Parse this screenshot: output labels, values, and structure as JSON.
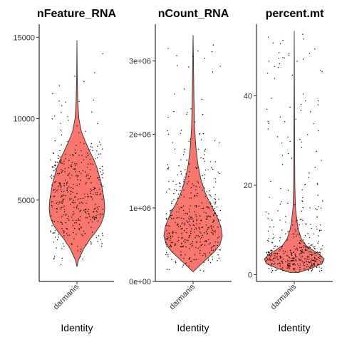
{
  "chart_data": [
    {
      "type": "violin",
      "title": "nFeature_RNA",
      "xlabel": "Identity",
      "category": "darmanis",
      "ylim": [
        0,
        15800
      ],
      "yticks": [
        5000,
        10000,
        15000
      ],
      "ytick_labels": [
        "5000",
        "10000",
        "15000"
      ],
      "min": 900,
      "max": 14800,
      "fill": "#f8766d",
      "density": [
        [
          900,
          0.0
        ],
        [
          1300,
          0.05
        ],
        [
          2000,
          0.24
        ],
        [
          2600,
          0.47
        ],
        [
          3000,
          0.66
        ],
        [
          3500,
          0.86
        ],
        [
          4000,
          0.97
        ],
        [
          4500,
          1.0
        ],
        [
          5000,
          0.98
        ],
        [
          5500,
          0.93
        ],
        [
          6000,
          0.88
        ],
        [
          6500,
          0.8
        ],
        [
          7000,
          0.72
        ],
        [
          7500,
          0.6
        ],
        [
          8000,
          0.46
        ],
        [
          8600,
          0.3
        ],
        [
          9200,
          0.16
        ],
        [
          10000,
          0.07
        ],
        [
          11000,
          0.03
        ],
        [
          12500,
          0.01
        ],
        [
          14800,
          0.0
        ]
      ]
    },
    {
      "type": "violin",
      "title": "nCount_RNA",
      "xlabel": "Identity",
      "category": "darmanis",
      "ylim": [
        0,
        3500000
      ],
      "yticks": [
        0,
        1000000,
        2000000,
        3000000
      ],
      "ytick_labels": [
        "0e+00",
        "1e+06",
        "2e+06",
        "3e+06"
      ],
      "min": 130000,
      "max": 3350000,
      "fill": "#f8766d",
      "density": [
        [
          130000,
          0.0
        ],
        [
          200000,
          0.18
        ],
        [
          300000,
          0.45
        ],
        [
          400000,
          0.72
        ],
        [
          500000,
          0.92
        ],
        [
          620000,
          1.0
        ],
        [
          750000,
          0.95
        ],
        [
          900000,
          0.8
        ],
        [
          1050000,
          0.6
        ],
        [
          1200000,
          0.42
        ],
        [
          1400000,
          0.26
        ],
        [
          1600000,
          0.16
        ],
        [
          1850000,
          0.09
        ],
        [
          2100000,
          0.05
        ],
        [
          2500000,
          0.03
        ],
        [
          2800000,
          0.02
        ],
        [
          3350000,
          0.0
        ]
      ]
    },
    {
      "type": "violin",
      "title": "percent.mt",
      "xlabel": "Identity",
      "category": "darmanis",
      "ylim": [
        -1.5,
        56
      ],
      "yticks": [
        0,
        20,
        40
      ],
      "ytick_labels": [
        "0",
        "20",
        "40"
      ],
      "min": 0.5,
      "max": 54.5,
      "fill": "#f8766d",
      "density": [
        [
          0.5,
          0.15
        ],
        [
          1.5,
          0.6
        ],
        [
          2.5,
          0.93
        ],
        [
          3.5,
          1.0
        ],
        [
          4.5,
          0.86
        ],
        [
          5.5,
          0.62
        ],
        [
          6.5,
          0.4
        ],
        [
          8,
          0.24
        ],
        [
          10,
          0.14
        ],
        [
          12,
          0.09
        ],
        [
          15,
          0.04
        ],
        [
          20,
          0.02
        ],
        [
          30,
          0.012
        ],
        [
          40,
          0.008
        ],
        [
          54.5,
          0.0
        ]
      ]
    }
  ]
}
